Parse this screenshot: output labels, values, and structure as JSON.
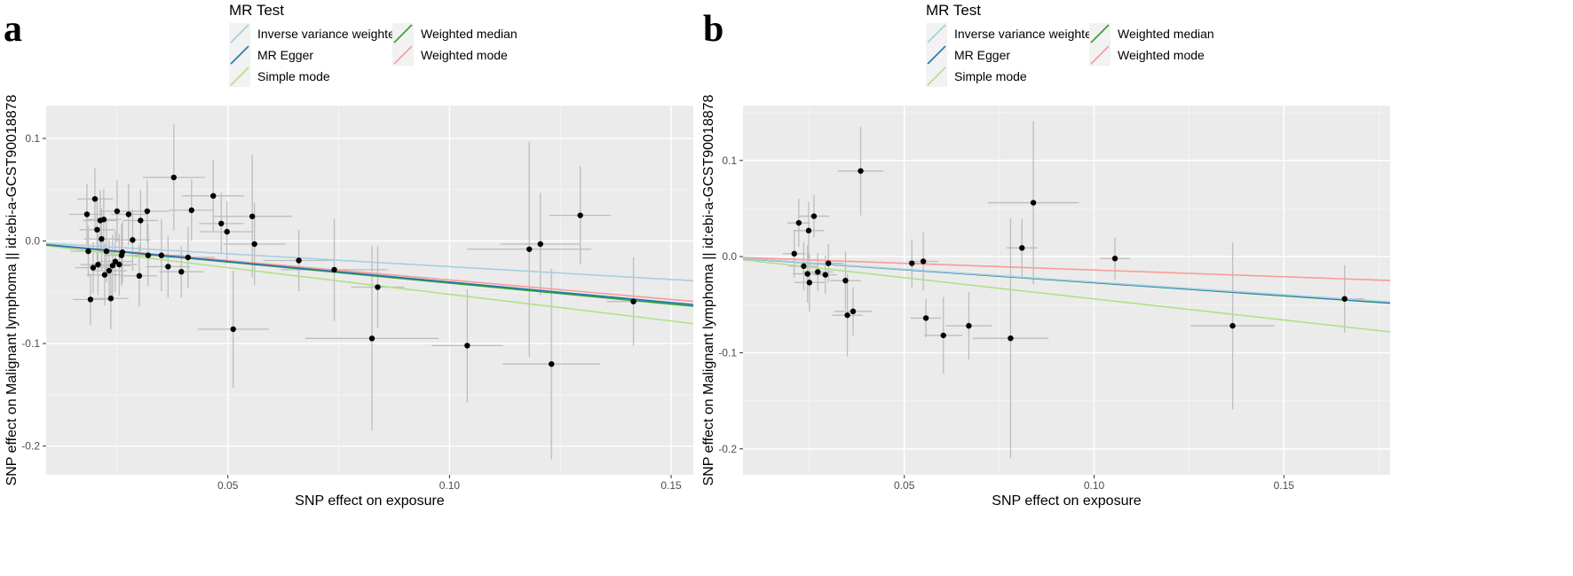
{
  "chart_data": [
    {
      "panel_label": "a",
      "type": "scatter",
      "legend_title": "MR Test",
      "legend": [
        {
          "name": "Inverse variance weighted",
          "color": "#a6cee3"
        },
        {
          "name": "Weighted median",
          "color": "#33a02c"
        },
        {
          "name": "MR Egger",
          "color": "#1f78b4"
        },
        {
          "name": "Weighted mode",
          "color": "#fb9a99"
        },
        {
          "name": "Simple mode",
          "color": "#b2df8a"
        }
      ],
      "legend_placement": "top",
      "xlabel": "SNP effect on exposure",
      "ylabel": "SNP effect on Malignant lymphoma || id:ebi-a-GCST90018878",
      "xlim": [
        0.009,
        0.155
      ],
      "ylim": [
        -0.228,
        0.132
      ],
      "xticks": [
        0.05,
        0.1,
        0.15
      ],
      "xtick_labels": [
        "0.05",
        "0.10",
        "0.15"
      ],
      "yticks": [
        0.1,
        0.0,
        -0.1,
        -0.2
      ],
      "ytick_labels": [
        "0.1",
        "0.0",
        "-0.1",
        "-0.2"
      ],
      "grid": true,
      "lines": [
        {
          "name": "Inverse variance weighted",
          "intercept": 0,
          "slope": -0.25
        },
        {
          "name": "MR Egger",
          "intercept": 0,
          "slope": -0.4
        },
        {
          "name": "Weighted median",
          "intercept": 0,
          "slope": -0.41
        },
        {
          "name": "Weighted mode",
          "intercept": 0,
          "slope": -0.38
        },
        {
          "name": "Simple mode",
          "intercept": 0,
          "slope": -0.52
        }
      ],
      "points": [
        {
          "x": 0.0182,
          "y": 0.026,
          "xerr": 0.004,
          "yerr": 0.03
        },
        {
          "x": 0.0185,
          "y": -0.01,
          "xerr": 0.004,
          "yerr": 0.025
        },
        {
          "x": 0.019,
          "y": -0.057,
          "xerr": 0.004,
          "yerr": 0.025
        },
        {
          "x": 0.0196,
          "y": -0.026,
          "xerr": 0.004,
          "yerr": 0.025
        },
        {
          "x": 0.02,
          "y": 0.041,
          "xerr": 0.004,
          "yerr": 0.03
        },
        {
          "x": 0.0205,
          "y": 0.011,
          "xerr": 0.004,
          "yerr": 0.03
        },
        {
          "x": 0.0207,
          "y": -0.023,
          "xerr": 0.004,
          "yerr": 0.03
        },
        {
          "x": 0.0212,
          "y": 0.02,
          "xerr": 0.004,
          "yerr": 0.03
        },
        {
          "x": 0.0215,
          "y": 0.002,
          "xerr": 0.004,
          "yerr": 0.03
        },
        {
          "x": 0.022,
          "y": 0.021,
          "xerr": 0.004,
          "yerr": 0.03
        },
        {
          "x": 0.0222,
          "y": -0.033,
          "xerr": 0.004,
          "yerr": 0.03
        },
        {
          "x": 0.0226,
          "y": -0.01,
          "xerr": 0.004,
          "yerr": 0.03
        },
        {
          "x": 0.0232,
          "y": -0.029,
          "xerr": 0.004,
          "yerr": 0.03
        },
        {
          "x": 0.0236,
          "y": -0.056,
          "xerr": 0.004,
          "yerr": 0.03
        },
        {
          "x": 0.024,
          "y": -0.024,
          "xerr": 0.004,
          "yerr": 0.03
        },
        {
          "x": 0.0246,
          "y": -0.02,
          "xerr": 0.004,
          "yerr": 0.03
        },
        {
          "x": 0.025,
          "y": 0.029,
          "xerr": 0.004,
          "yerr": 0.03
        },
        {
          "x": 0.0255,
          "y": -0.023,
          "xerr": 0.004,
          "yerr": 0.03
        },
        {
          "x": 0.026,
          "y": -0.014,
          "xerr": 0.004,
          "yerr": 0.03
        },
        {
          "x": 0.0262,
          "y": -0.011,
          "xerr": 0.004,
          "yerr": 0.03
        },
        {
          "x": 0.0276,
          "y": 0.026,
          "xerr": 0.004,
          "yerr": 0.03
        },
        {
          "x": 0.0285,
          "y": 0.001,
          "xerr": 0.004,
          "yerr": 0.03
        },
        {
          "x": 0.03,
          "y": -0.034,
          "xerr": 0.004,
          "yerr": 0.03
        },
        {
          "x": 0.0303,
          "y": 0.02,
          "xerr": 0.004,
          "yerr": 0.03
        },
        {
          "x": 0.0318,
          "y": 0.029,
          "xerr": 0.005,
          "yerr": 0.03
        },
        {
          "x": 0.032,
          "y": -0.014,
          "xerr": 0.005,
          "yerr": 0.03
        },
        {
          "x": 0.035,
          "y": -0.014,
          "xerr": 0.005,
          "yerr": 0.035
        },
        {
          "x": 0.0365,
          "y": -0.025,
          "xerr": 0.005,
          "yerr": 0.03
        },
        {
          "x": 0.0378,
          "y": 0.062,
          "xerr": 0.007,
          "yerr": 0.052
        },
        {
          "x": 0.0395,
          "y": -0.03,
          "xerr": 0.005,
          "yerr": 0.025
        },
        {
          "x": 0.041,
          "y": -0.016,
          "xerr": 0.006,
          "yerr": 0.03
        },
        {
          "x": 0.0418,
          "y": 0.03,
          "xerr": 0.005,
          "yerr": 0.03
        },
        {
          "x": 0.0467,
          "y": 0.044,
          "xerr": 0.007,
          "yerr": 0.035
        },
        {
          "x": 0.0485,
          "y": 0.017,
          "xerr": 0.005,
          "yerr": 0.03
        },
        {
          "x": 0.0498,
          "y": 0.009,
          "xerr": 0.006,
          "yerr": 0.03
        },
        {
          "x": 0.0512,
          "y": -0.086,
          "xerr": 0.008,
          "yerr": 0.057
        },
        {
          "x": 0.0555,
          "y": 0.024,
          "xerr": 0.009,
          "yerr": 0.06
        },
        {
          "x": 0.056,
          "y": -0.003,
          "xerr": 0.007,
          "yerr": 0.04
        },
        {
          "x": 0.066,
          "y": -0.019,
          "xerr": 0.008,
          "yerr": 0.03
        },
        {
          "x": 0.074,
          "y": -0.028,
          "xerr": 0.012,
          "yerr": 0.05
        },
        {
          "x": 0.0825,
          "y": -0.095,
          "xerr": 0.015,
          "yerr": 0.09
        },
        {
          "x": 0.0838,
          "y": -0.045,
          "xerr": 0.006,
          "yerr": 0.04
        },
        {
          "x": 0.104,
          "y": -0.102,
          "xerr": 0.008,
          "yerr": 0.055
        },
        {
          "x": 0.118,
          "y": -0.008,
          "xerr": 0.014,
          "yerr": 0.105
        },
        {
          "x": 0.1205,
          "y": -0.003,
          "xerr": 0.009,
          "yerr": 0.05
        },
        {
          "x": 0.123,
          "y": -0.12,
          "xerr": 0.011,
          "yerr": 0.093
        },
        {
          "x": 0.1295,
          "y": 0.025,
          "xerr": 0.007,
          "yerr": 0.048
        },
        {
          "x": 0.1415,
          "y": -0.059,
          "xerr": 0.006,
          "yerr": 0.043
        }
      ]
    },
    {
      "panel_label": "b",
      "type": "scatter",
      "legend_title": "MR Test",
      "legend": [
        {
          "name": "Inverse variance weighted",
          "color": "#a6cee3"
        },
        {
          "name": "Weighted median",
          "color": "#33a02c"
        },
        {
          "name": "MR Egger",
          "color": "#1f78b4"
        },
        {
          "name": "Weighted mode",
          "color": "#fb9a99"
        },
        {
          "name": "Simple mode",
          "color": "#b2df8a"
        }
      ],
      "legend_placement": "top",
      "xlabel": "SNP effect on exposure",
      "ylabel": "SNP effect on Malignant lymphoma || id:ebi-a-GCST90018878",
      "xlim": [
        0.0075,
        0.178
      ],
      "ylim": [
        -0.227,
        0.157
      ],
      "xticks": [
        0.05,
        0.1,
        0.15
      ],
      "xtick_labels": [
        "0.05",
        "0.10",
        "0.15"
      ],
      "yticks": [
        0.1,
        0.0,
        -0.1,
        -0.2
      ],
      "ytick_labels": [
        "0.1",
        "0.0",
        "-0.1",
        "-0.2"
      ],
      "grid": true,
      "lines": [
        {
          "name": "Inverse variance weighted",
          "intercept": 0,
          "slope": -0.265
        },
        {
          "name": "MR Egger",
          "intercept": 0,
          "slope": -0.27
        },
        {
          "name": "Weighted median",
          "intercept": 0,
          "slope": -0.272
        },
        {
          "name": "Weighted mode",
          "intercept": 0,
          "slope": -0.14
        },
        {
          "name": "Simple mode",
          "intercept": 0,
          "slope": -0.44
        }
      ],
      "points": [
        {
          "x": 0.021,
          "y": 0.003,
          "xerr": 0.003,
          "yerr": 0.025
        },
        {
          "x": 0.0222,
          "y": 0.035,
          "xerr": 0.003,
          "yerr": 0.025
        },
        {
          "x": 0.0235,
          "y": -0.01,
          "xerr": 0.004,
          "yerr": 0.025
        },
        {
          "x": 0.0245,
          "y": -0.018,
          "xerr": 0.004,
          "yerr": 0.03
        },
        {
          "x": 0.0248,
          "y": 0.027,
          "xerr": 0.004,
          "yerr": 0.03
        },
        {
          "x": 0.025,
          "y": -0.027,
          "xerr": 0.004,
          "yerr": 0.03
        },
        {
          "x": 0.0262,
          "y": 0.042,
          "xerr": 0.004,
          "yerr": 0.022
        },
        {
          "x": 0.0272,
          "y": -0.016,
          "xerr": 0.004,
          "yerr": 0.02
        },
        {
          "x": 0.0292,
          "y": -0.019,
          "xerr": 0.003,
          "yerr": 0.02
        },
        {
          "x": 0.03,
          "y": -0.007,
          "xerr": 0.004,
          "yerr": 0.02
        },
        {
          "x": 0.0345,
          "y": -0.025,
          "xerr": 0.004,
          "yerr": 0.03
        },
        {
          "x": 0.035,
          "y": -0.061,
          "xerr": 0.004,
          "yerr": 0.043
        },
        {
          "x": 0.0365,
          "y": -0.057,
          "xerr": 0.005,
          "yerr": 0.025
        },
        {
          "x": 0.0385,
          "y": 0.089,
          "xerr": 0.006,
          "yerr": 0.046
        },
        {
          "x": 0.052,
          "y": -0.007,
          "xerr": 0.004,
          "yerr": 0.025
        },
        {
          "x": 0.055,
          "y": -0.005,
          "xerr": 0.004,
          "yerr": 0.03
        },
        {
          "x": 0.0557,
          "y": -0.064,
          "xerr": 0.004,
          "yerr": 0.02
        },
        {
          "x": 0.0603,
          "y": -0.082,
          "xerr": 0.005,
          "yerr": 0.04
        },
        {
          "x": 0.067,
          "y": -0.072,
          "xerr": 0.006,
          "yerr": 0.035
        },
        {
          "x": 0.078,
          "y": -0.085,
          "xerr": 0.01,
          "yerr": 0.125
        },
        {
          "x": 0.081,
          "y": 0.009,
          "xerr": 0.004,
          "yerr": 0.03
        },
        {
          "x": 0.084,
          "y": 0.056,
          "xerr": 0.012,
          "yerr": 0.085
        },
        {
          "x": 0.1055,
          "y": -0.002,
          "xerr": 0.004,
          "yerr": 0.022
        },
        {
          "x": 0.1365,
          "y": -0.072,
          "xerr": 0.011,
          "yerr": 0.087
        },
        {
          "x": 0.166,
          "y": -0.044,
          "xerr": 0.005,
          "yerr": 0.035
        }
      ]
    }
  ]
}
